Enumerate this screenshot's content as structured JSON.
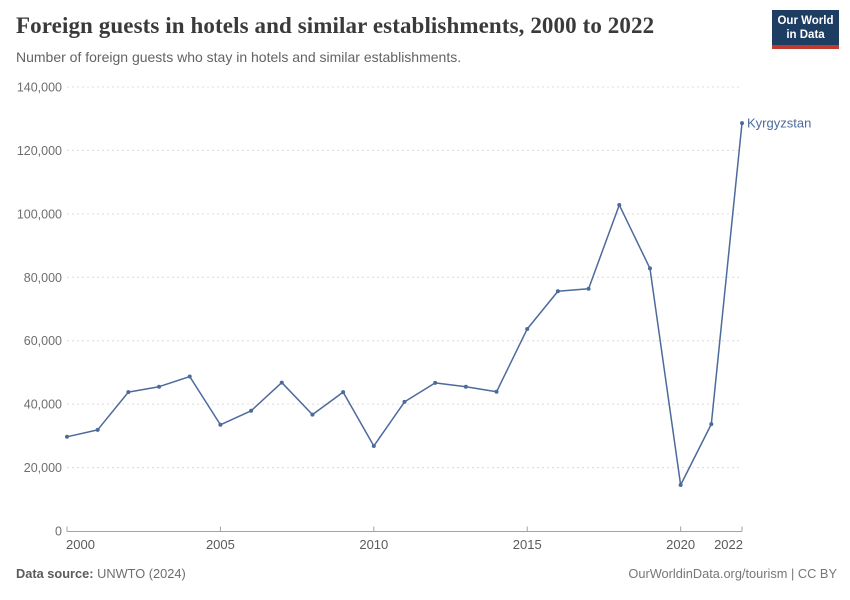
{
  "header": {
    "title": "Foreign guests in hotels and similar establishments, 2000 to 2022",
    "subtitle": "Number of foreign guests who stay in hotels and similar establishments.",
    "logo": {
      "line1": "Our World",
      "line2": "in Data",
      "bg_color": "#1d3d63",
      "bar_color": "#c13a32"
    }
  },
  "chart_data": {
    "type": "line",
    "title": "Foreign guests in hotels and similar establishments, 2000 to 2022",
    "xlabel": "",
    "ylabel": "",
    "x": [
      2000,
      2001,
      2002,
      2003,
      2004,
      2005,
      2006,
      2007,
      2008,
      2009,
      2010,
      2011,
      2012,
      2013,
      2014,
      2015,
      2016,
      2017,
      2018,
      2019,
      2020,
      2021,
      2022
    ],
    "series": [
      {
        "name": "Kyrgyzstan",
        "color": "#4c6a9c",
        "values": [
          29700,
          31900,
          43800,
          45500,
          48700,
          33500,
          37900,
          46800,
          36700,
          43800,
          26800,
          40700,
          46700,
          45500,
          43900,
          63700,
          75600,
          76400,
          102800,
          82800,
          14500,
          33700,
          128600
        ]
      }
    ],
    "xlim": [
      2000,
      2022
    ],
    "ylim": [
      0,
      140000
    ],
    "x_ticks": [
      2000,
      2005,
      2010,
      2015,
      2020,
      2022
    ],
    "y_ticks": [
      0,
      20000,
      40000,
      60000,
      80000,
      100000,
      120000,
      140000
    ],
    "grid": "horizontal-dashed",
    "legend_position": "end-of-line-label",
    "colors": {
      "gridline": "#dcdcdc",
      "axis": "#a3a3a3",
      "y_tick_label": "#6e6e6e",
      "x_tick_label": "#5b5b5b"
    }
  },
  "footer": {
    "source_label": "Data source:",
    "source_value": " UNWTO (2024)",
    "credit": "OurWorldinData.org/tourism | CC BY"
  }
}
